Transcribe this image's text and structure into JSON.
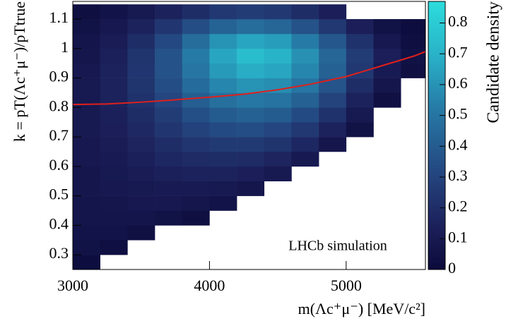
{
  "chart_data": {
    "type": "heatmap",
    "xlabel": "m(Λc⁺μ⁻) [MeV/c²]",
    "ylabel": "k = pT(Λc⁺μ⁻)/pTtrue",
    "colorbar_label": "Candidate density",
    "annotation": "LHCb simulation",
    "xlim": [
      3000,
      5580
    ],
    "ylim": [
      0.25,
      1.16
    ],
    "zlim": [
      0,
      0.87
    ],
    "xticks": [
      3000,
      4000,
      5000
    ],
    "yticks": [
      0.3,
      0.4,
      0.5,
      0.6,
      0.7,
      0.8,
      0.9,
      1,
      1.1
    ],
    "zticks": [
      0,
      0.1,
      0.2,
      0.3,
      0.4,
      0.5,
      0.6,
      0.7,
      0.8
    ],
    "colorscale": [
      [
        0,
        "#0b0a3a"
      ],
      [
        0.15,
        "#1b1e58"
      ],
      [
        0.35,
        "#24447e"
      ],
      [
        0.6,
        "#267aa6"
      ],
      [
        0.8,
        "#29b2c8"
      ],
      [
        1,
        "#2cdcdc"
      ]
    ],
    "xbins": [
      3000,
      3200,
      3400,
      3600,
      3800,
      4000,
      4200,
      4400,
      4600,
      4800,
      5000,
      5200,
      5400,
      5600
    ],
    "ybins": [
      0.25,
      0.3,
      0.35,
      0.4,
      0.45,
      0.5,
      0.55,
      0.6,
      0.65,
      0.7,
      0.75,
      0.8,
      0.85,
      0.9,
      0.95,
      1.0,
      1.05,
      1.1,
      1.15
    ],
    "z": [
      [
        0.02,
        0,
        0,
        0,
        0,
        0,
        0,
        0,
        0,
        0,
        0,
        0,
        0
      ],
      [
        0.05,
        0.03,
        0,
        0,
        0,
        0,
        0,
        0,
        0,
        0,
        0,
        0,
        0
      ],
      [
        0.06,
        0.06,
        0.04,
        0,
        0,
        0,
        0,
        0,
        0,
        0,
        0,
        0,
        0
      ],
      [
        0.07,
        0.07,
        0.07,
        0.05,
        0.03,
        0,
        0,
        0,
        0,
        0,
        0,
        0,
        0
      ],
      [
        0.07,
        0.08,
        0.09,
        0.09,
        0.08,
        0.06,
        0,
        0,
        0,
        0,
        0,
        0,
        0
      ],
      [
        0.08,
        0.09,
        0.1,
        0.11,
        0.11,
        0.1,
        0.08,
        0,
        0,
        0,
        0,
        0,
        0
      ],
      [
        0.08,
        0.1,
        0.12,
        0.14,
        0.15,
        0.15,
        0.13,
        0.1,
        0,
        0,
        0,
        0,
        0
      ],
      [
        0.09,
        0.11,
        0.14,
        0.17,
        0.19,
        0.2,
        0.19,
        0.16,
        0.1,
        0,
        0,
        0,
        0
      ],
      [
        0.09,
        0.12,
        0.16,
        0.2,
        0.24,
        0.26,
        0.26,
        0.23,
        0.17,
        0.08,
        0,
        0,
        0
      ],
      [
        0.1,
        0.13,
        0.18,
        0.24,
        0.29,
        0.33,
        0.34,
        0.31,
        0.25,
        0.15,
        0.05,
        0,
        0
      ],
      [
        0.1,
        0.14,
        0.2,
        0.27,
        0.35,
        0.4,
        0.42,
        0.4,
        0.33,
        0.22,
        0.1,
        0,
        0
      ],
      [
        0.1,
        0.15,
        0.22,
        0.31,
        0.41,
        0.48,
        0.51,
        0.49,
        0.42,
        0.3,
        0.15,
        0.04,
        0
      ],
      [
        0.1,
        0.15,
        0.23,
        0.34,
        0.46,
        0.56,
        0.6,
        0.58,
        0.5,
        0.37,
        0.2,
        0.08,
        0
      ],
      [
        0.09,
        0.15,
        0.24,
        0.36,
        0.5,
        0.62,
        0.68,
        0.66,
        0.56,
        0.42,
        0.25,
        0.11,
        0.04
      ],
      [
        0.08,
        0.14,
        0.23,
        0.36,
        0.52,
        0.66,
        0.74,
        0.7,
        0.59,
        0.44,
        0.27,
        0.13,
        0.05
      ],
      [
        0.07,
        0.12,
        0.2,
        0.32,
        0.47,
        0.6,
        0.66,
        0.63,
        0.52,
        0.38,
        0.22,
        0.09,
        0.03
      ],
      [
        0.05,
        0.09,
        0.15,
        0.24,
        0.34,
        0.43,
        0.47,
        0.44,
        0.36,
        0.25,
        0.13,
        0.05,
        0.02
      ],
      [
        0.03,
        0.06,
        0.1,
        0.15,
        0.2,
        0.25,
        0.27,
        0.25,
        0.2,
        0.13,
        0,
        0,
        0
      ]
    ],
    "curve": {
      "color": "#e0201b",
      "x": [
        3000,
        3250,
        3500,
        3750,
        4000,
        4250,
        4500,
        4750,
        5000,
        5250,
        5500,
        5580
      ],
      "y": [
        0.81,
        0.812,
        0.818,
        0.826,
        0.835,
        0.845,
        0.86,
        0.88,
        0.905,
        0.94,
        0.975,
        0.99
      ]
    }
  }
}
